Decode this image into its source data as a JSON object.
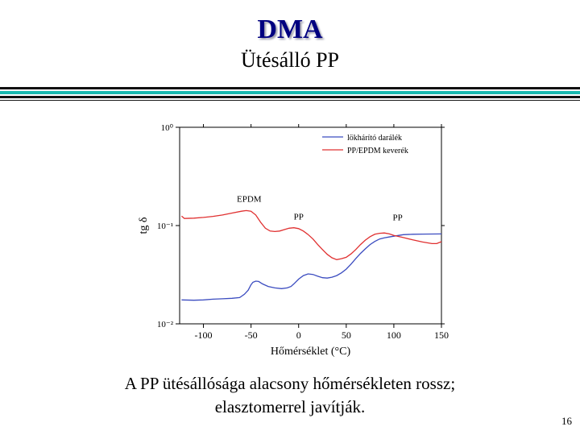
{
  "slide": {
    "title": "DMA",
    "subtitle": "Ütésálló PP",
    "caption_line1": "A PP ütésállósága alacsony hőmérsékleten rossz;",
    "caption_line2": "elasztomerrel javítják.",
    "page_number": "16"
  },
  "colors": {
    "title": "#000080",
    "series1": "#3b4cc0",
    "series2": "#e03030",
    "rule_teal": "#19b9b0"
  },
  "chart_data": {
    "type": "line",
    "title": "",
    "xlabel": "Hőmérséklet (°C)",
    "ylabel": "tg δ",
    "y_scale": "log",
    "xlim": [
      -125,
      150
    ],
    "ylim": [
      0.01,
      1
    ],
    "x_ticks": [
      -100,
      -50,
      0,
      50,
      100,
      150
    ],
    "x_tick_labels": [
      "-100",
      "-50",
      "0",
      "50",
      "100",
      "150"
    ],
    "y_ticks": [
      0.01,
      0.1,
      1
    ],
    "y_tick_labels": [
      "10⁻²",
      "10⁻¹",
      "10⁰"
    ],
    "legend_position": "top-right",
    "grid": false,
    "series": [
      {
        "name": "lökhárító darálék",
        "color": "#3b4cc0",
        "x": [
          -123,
          -110,
          -100,
          -90,
          -80,
          -70,
          -62,
          -57,
          -53,
          -50,
          -48,
          -45,
          -42,
          -38,
          -32,
          -25,
          -18,
          -12,
          -8,
          -5,
          0,
          5,
          10,
          15,
          20,
          25,
          30,
          35,
          40,
          45,
          50,
          55,
          60,
          65,
          70,
          75,
          80,
          85,
          90,
          95,
          100,
          110,
          120,
          130,
          140,
          150
        ],
        "y": [
          0.0175,
          0.0174,
          0.0175,
          0.0178,
          0.018,
          0.0182,
          0.0185,
          0.02,
          0.022,
          0.025,
          0.0265,
          0.0272,
          0.027,
          0.0255,
          0.024,
          0.0232,
          0.0228,
          0.0232,
          0.024,
          0.0255,
          0.0285,
          0.031,
          0.0322,
          0.0318,
          0.0305,
          0.0295,
          0.0292,
          0.0298,
          0.031,
          0.033,
          0.036,
          0.0405,
          0.046,
          0.052,
          0.058,
          0.064,
          0.069,
          0.073,
          0.075,
          0.0765,
          0.078,
          0.0808,
          0.0815,
          0.0818,
          0.082,
          0.0822
        ]
      },
      {
        "name": "PP/EPDM keverék",
        "color": "#e03030",
        "x": [
          -123,
          -120,
          -110,
          -100,
          -90,
          -80,
          -70,
          -60,
          -55,
          -50,
          -45,
          -40,
          -35,
          -30,
          -25,
          -20,
          -15,
          -10,
          -5,
          0,
          5,
          10,
          15,
          20,
          25,
          30,
          35,
          40,
          45,
          50,
          55,
          60,
          65,
          70,
          75,
          80,
          85,
          90,
          95,
          100,
          110,
          120,
          130,
          140,
          145,
          150
        ],
        "y": [
          0.125,
          0.118,
          0.119,
          0.121,
          0.124,
          0.128,
          0.134,
          0.14,
          0.142,
          0.14,
          0.128,
          0.108,
          0.094,
          0.088,
          0.087,
          0.088,
          0.091,
          0.094,
          0.095,
          0.093,
          0.088,
          0.081,
          0.073,
          0.064,
          0.057,
          0.051,
          0.047,
          0.045,
          0.046,
          0.0475,
          0.0515,
          0.057,
          0.064,
          0.071,
          0.077,
          0.0815,
          0.0835,
          0.084,
          0.0825,
          0.0795,
          0.0755,
          0.0715,
          0.068,
          0.0655,
          0.0655,
          0.0685
        ]
      }
    ],
    "annotations": [
      {
        "text": "EPDM",
        "x": -52,
        "y": 0.175
      },
      {
        "text": "PP",
        "x": 0,
        "y": 0.115
      },
      {
        "text": "PP",
        "x": 104,
        "y": 0.113
      }
    ]
  }
}
